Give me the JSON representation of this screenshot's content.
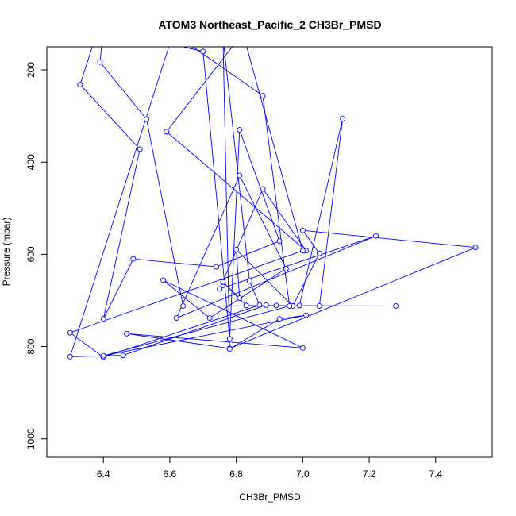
{
  "chart_data": {
    "type": "line",
    "title": "ATOM3 Northeast_Pacific_2 CH3Br_PMSD",
    "xlabel": "CH3Br_PMSD",
    "ylabel": "Pressure (mbar)",
    "xlim": [
      6.23,
      7.57
    ],
    "ylim": [
      1040,
      150
    ],
    "y_reversed": true,
    "grid": false,
    "x_ticks": [
      6.4,
      6.6,
      6.8,
      7.0,
      7.2,
      7.4
    ],
    "x_tick_labels": [
      "6.4",
      "6.6",
      "6.8",
      "7.0",
      "7.2",
      "7.4"
    ],
    "y_ticks": [
      200,
      400,
      600,
      800,
      1000
    ],
    "y_tick_labels": [
      "200",
      "400",
      "600",
      "800",
      "1000"
    ],
    "series": [
      {
        "color": "#0000ff",
        "marker": "open-circle",
        "x": [
          6.38,
          6.33,
          6.51,
          6.4,
          6.49,
          6.74,
          6.93,
          6.81,
          6.78,
          6.7,
          6.4,
          6.39,
          6.53,
          6.64,
          6.99,
          7.12,
          7.05,
          7.28,
          6.92,
          6.83,
          6.76,
          6.81,
          6.8,
          6.97,
          7.05,
          7.0,
          7.52,
          6.78,
          6.47,
          7.0,
          6.58,
          6.72,
          6.95,
          6.81,
          6.62,
          7.22,
          6.75,
          6.88,
          7.01,
          6.59,
          6.82,
          7.0,
          6.3,
          6.4,
          6.87,
          6.84,
          6.76,
          6.78,
          6.93,
          7.01,
          6.4,
          6.96,
          6.88,
          6.61,
          6.3,
          6.46,
          6.89
        ],
        "y": [
          120,
          232,
          372,
          740,
          610,
          627,
          571,
          330,
          783,
          160,
          110,
          183,
          307,
          712,
          711,
          306,
          712,
          712,
          711,
          711,
          660,
          695,
          590,
          712,
          598,
          548,
          585,
          804,
          772,
          803,
          656,
          738,
          631,
          429,
          738,
          560,
          675,
          458,
          592,
          334,
          120,
          592,
          770,
          823,
          710,
          658,
          130,
          805,
          740,
          732,
          820,
          712,
          256,
          120,
          822,
          819,
          710
        ]
      }
    ]
  }
}
